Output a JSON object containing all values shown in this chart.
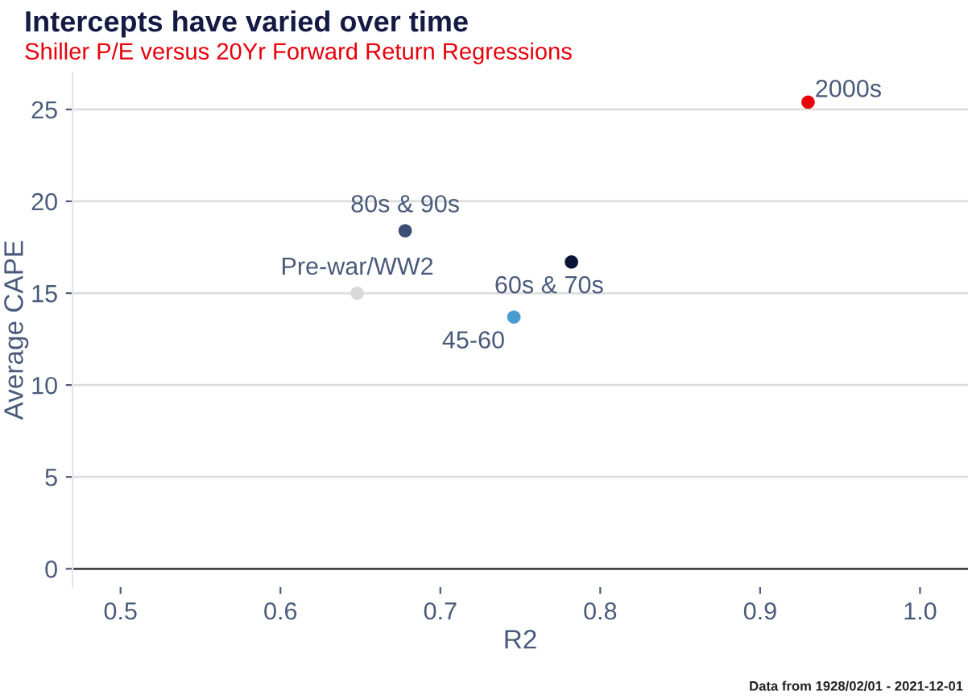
{
  "chart_data": {
    "type": "scatter",
    "title": "Intercepts have varied over time",
    "subtitle": "Shiller P/E versus 20Yr Forward Return Regressions",
    "xlabel": "R2",
    "ylabel": "Average CAPE",
    "series": [
      {
        "name": "Pre-war/WW2",
        "color": "#d9d9d9",
        "x": [
          0.648
        ],
        "values": [
          15.0
        ]
      },
      {
        "name": "80s & 90s",
        "color": "#3b4f75",
        "x": [
          0.678
        ],
        "values": [
          18.4
        ]
      },
      {
        "name": "45-60",
        "color": "#4a9bd0",
        "x": [
          0.746
        ],
        "values": [
          13.7
        ]
      },
      {
        "name": "60s & 70s",
        "color": "#0a1538",
        "x": [
          0.782
        ],
        "values": [
          16.7
        ]
      },
      {
        "name": "2000s",
        "color": "#e8000b",
        "x": [
          0.93
        ],
        "values": [
          25.4
        ]
      }
    ],
    "xlim": [
      0.47,
      1.03
    ],
    "xticks": [
      0.5,
      0.6,
      0.7,
      0.8,
      0.9,
      {
        "value": 1,
        "label": "1.0"
      }
    ],
    "ylim": [
      -1,
      27
    ],
    "yticks": [
      0,
      5,
      10,
      15,
      20,
      25
    ],
    "grid": "y",
    "legend": false,
    "marker": "circle",
    "annotations": [
      "Data from 1928/02/01 - 2021-12-01"
    ]
  }
}
